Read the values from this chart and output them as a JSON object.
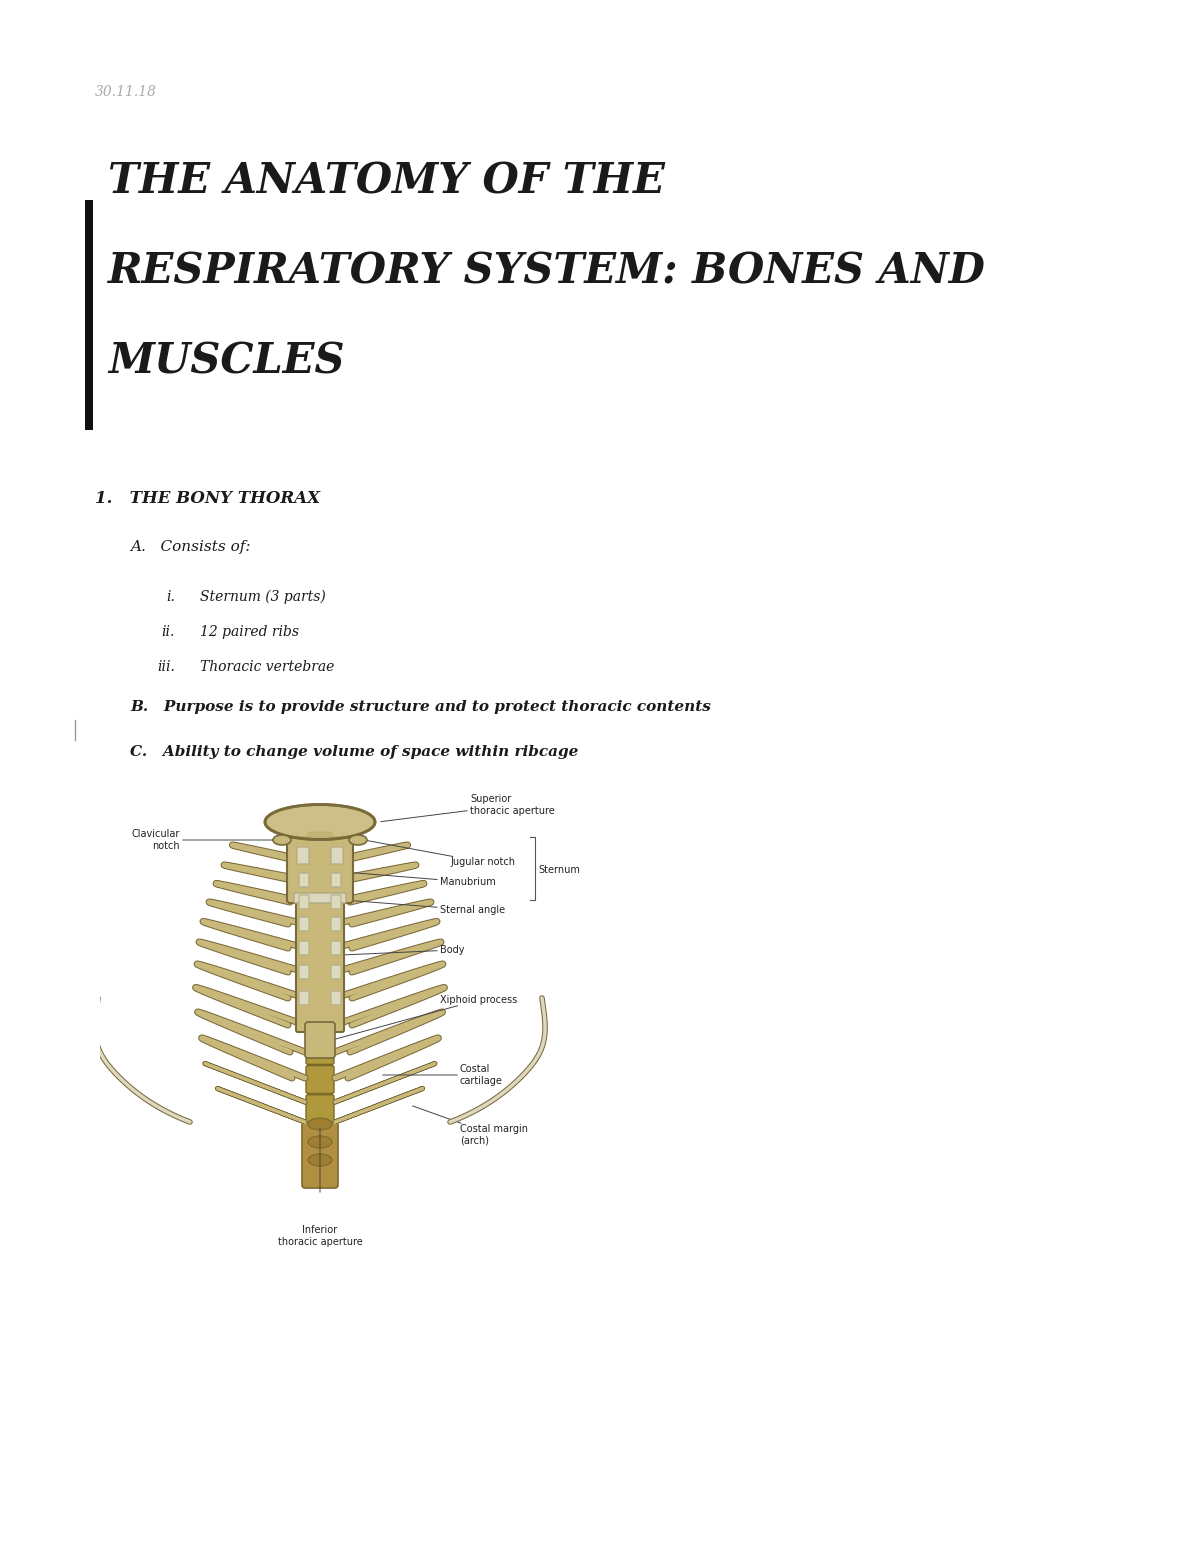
{
  "background_color": "#ffffff",
  "date_text": "30.11.18",
  "date_color": "#aaaaaa",
  "date_fontsize": 10,
  "title_lines": [
    "THE ANATOMY OF THE",
    "RESPIRATORY SYSTEM: BONES AND",
    "MUSCLES"
  ],
  "title_fontsize": 30,
  "title_color": "#1a1a1a",
  "bar_color": "#111111",
  "section_heading": "1.   THE BONY THORAX",
  "section_heading_fontsize": 12,
  "subsection_A_text": "A.   Consists of:",
  "subsection_fontsize": 11,
  "items_roman": [
    "i.",
    "ii.",
    "iii."
  ],
  "items_text": [
    "Sternum (3 parts)",
    "12 paired ribs",
    "Thoracic vertebrae"
  ],
  "items_fontsize": 10,
  "subsection_B_text": "B.   Purpose is to provide structure and to protect thoracic contents",
  "subsection_C_text": "C.   Ability to change volume of space within ribcage",
  "font_family": "serif",
  "italic_style": "italic",
  "bone_color": "#c8b87a",
  "bone_dark": "#a09050",
  "bone_edge": "#7a6a3a",
  "cartilage_color": "#ddd8c0",
  "cartilage_edge": "#b0a880",
  "spine_color": "#b0983c",
  "spine_edge": "#7a6a2a",
  "label_fontsize": 7,
  "label_color": "#222222"
}
